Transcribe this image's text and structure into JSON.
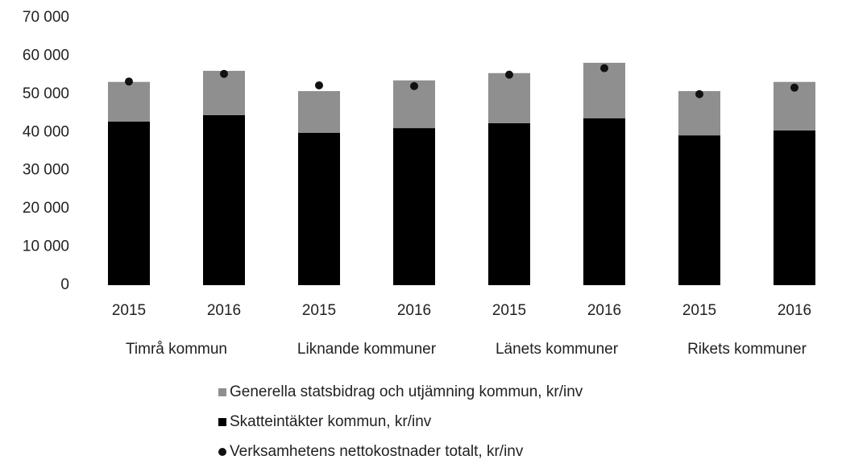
{
  "chart_data": {
    "type": "bar",
    "stacked": true,
    "categories": [
      "2015",
      "2016",
      "2015",
      "2016",
      "2015",
      "2016",
      "2015",
      "2016"
    ],
    "groups": [
      "Timrå kommun",
      "Liknande kommuner",
      "Länets kommuner",
      "Rikets kommuner"
    ],
    "series": [
      {
        "name": "Generella statsbidrag och utjämning kommun, kr/inv",
        "color": "#8f8f8f",
        "type": "bar",
        "values": [
          10400,
          11600,
          10900,
          12500,
          13100,
          14500,
          11600,
          12700
        ]
      },
      {
        "name": "Skatteintäkter kommun, kr/inv",
        "color": "#000000",
        "type": "bar",
        "values": [
          42800,
          44500,
          39900,
          41100,
          42400,
          43700,
          39200,
          40500
        ]
      },
      {
        "name": "Verksamhetens nettokostnader totalt, kr/inv",
        "color": "#111111",
        "type": "scatter",
        "values": [
          53300,
          55300,
          52300,
          52100,
          55100,
          56800,
          50000,
          51700
        ]
      }
    ],
    "ylim": [
      0,
      70000
    ],
    "yticks": [
      {
        "value": 0,
        "label": "0"
      },
      {
        "value": 10000,
        "label": "10 000"
      },
      {
        "value": 20000,
        "label": "20 000"
      },
      {
        "value": 30000,
        "label": "30 000"
      },
      {
        "value": 40000,
        "label": "40 000"
      },
      {
        "value": 50000,
        "label": "50 000"
      },
      {
        "value": 60000,
        "label": "60 000"
      },
      {
        "value": 70000,
        "label": "70 000"
      }
    ],
    "grid": false,
    "legend": "bottom"
  }
}
